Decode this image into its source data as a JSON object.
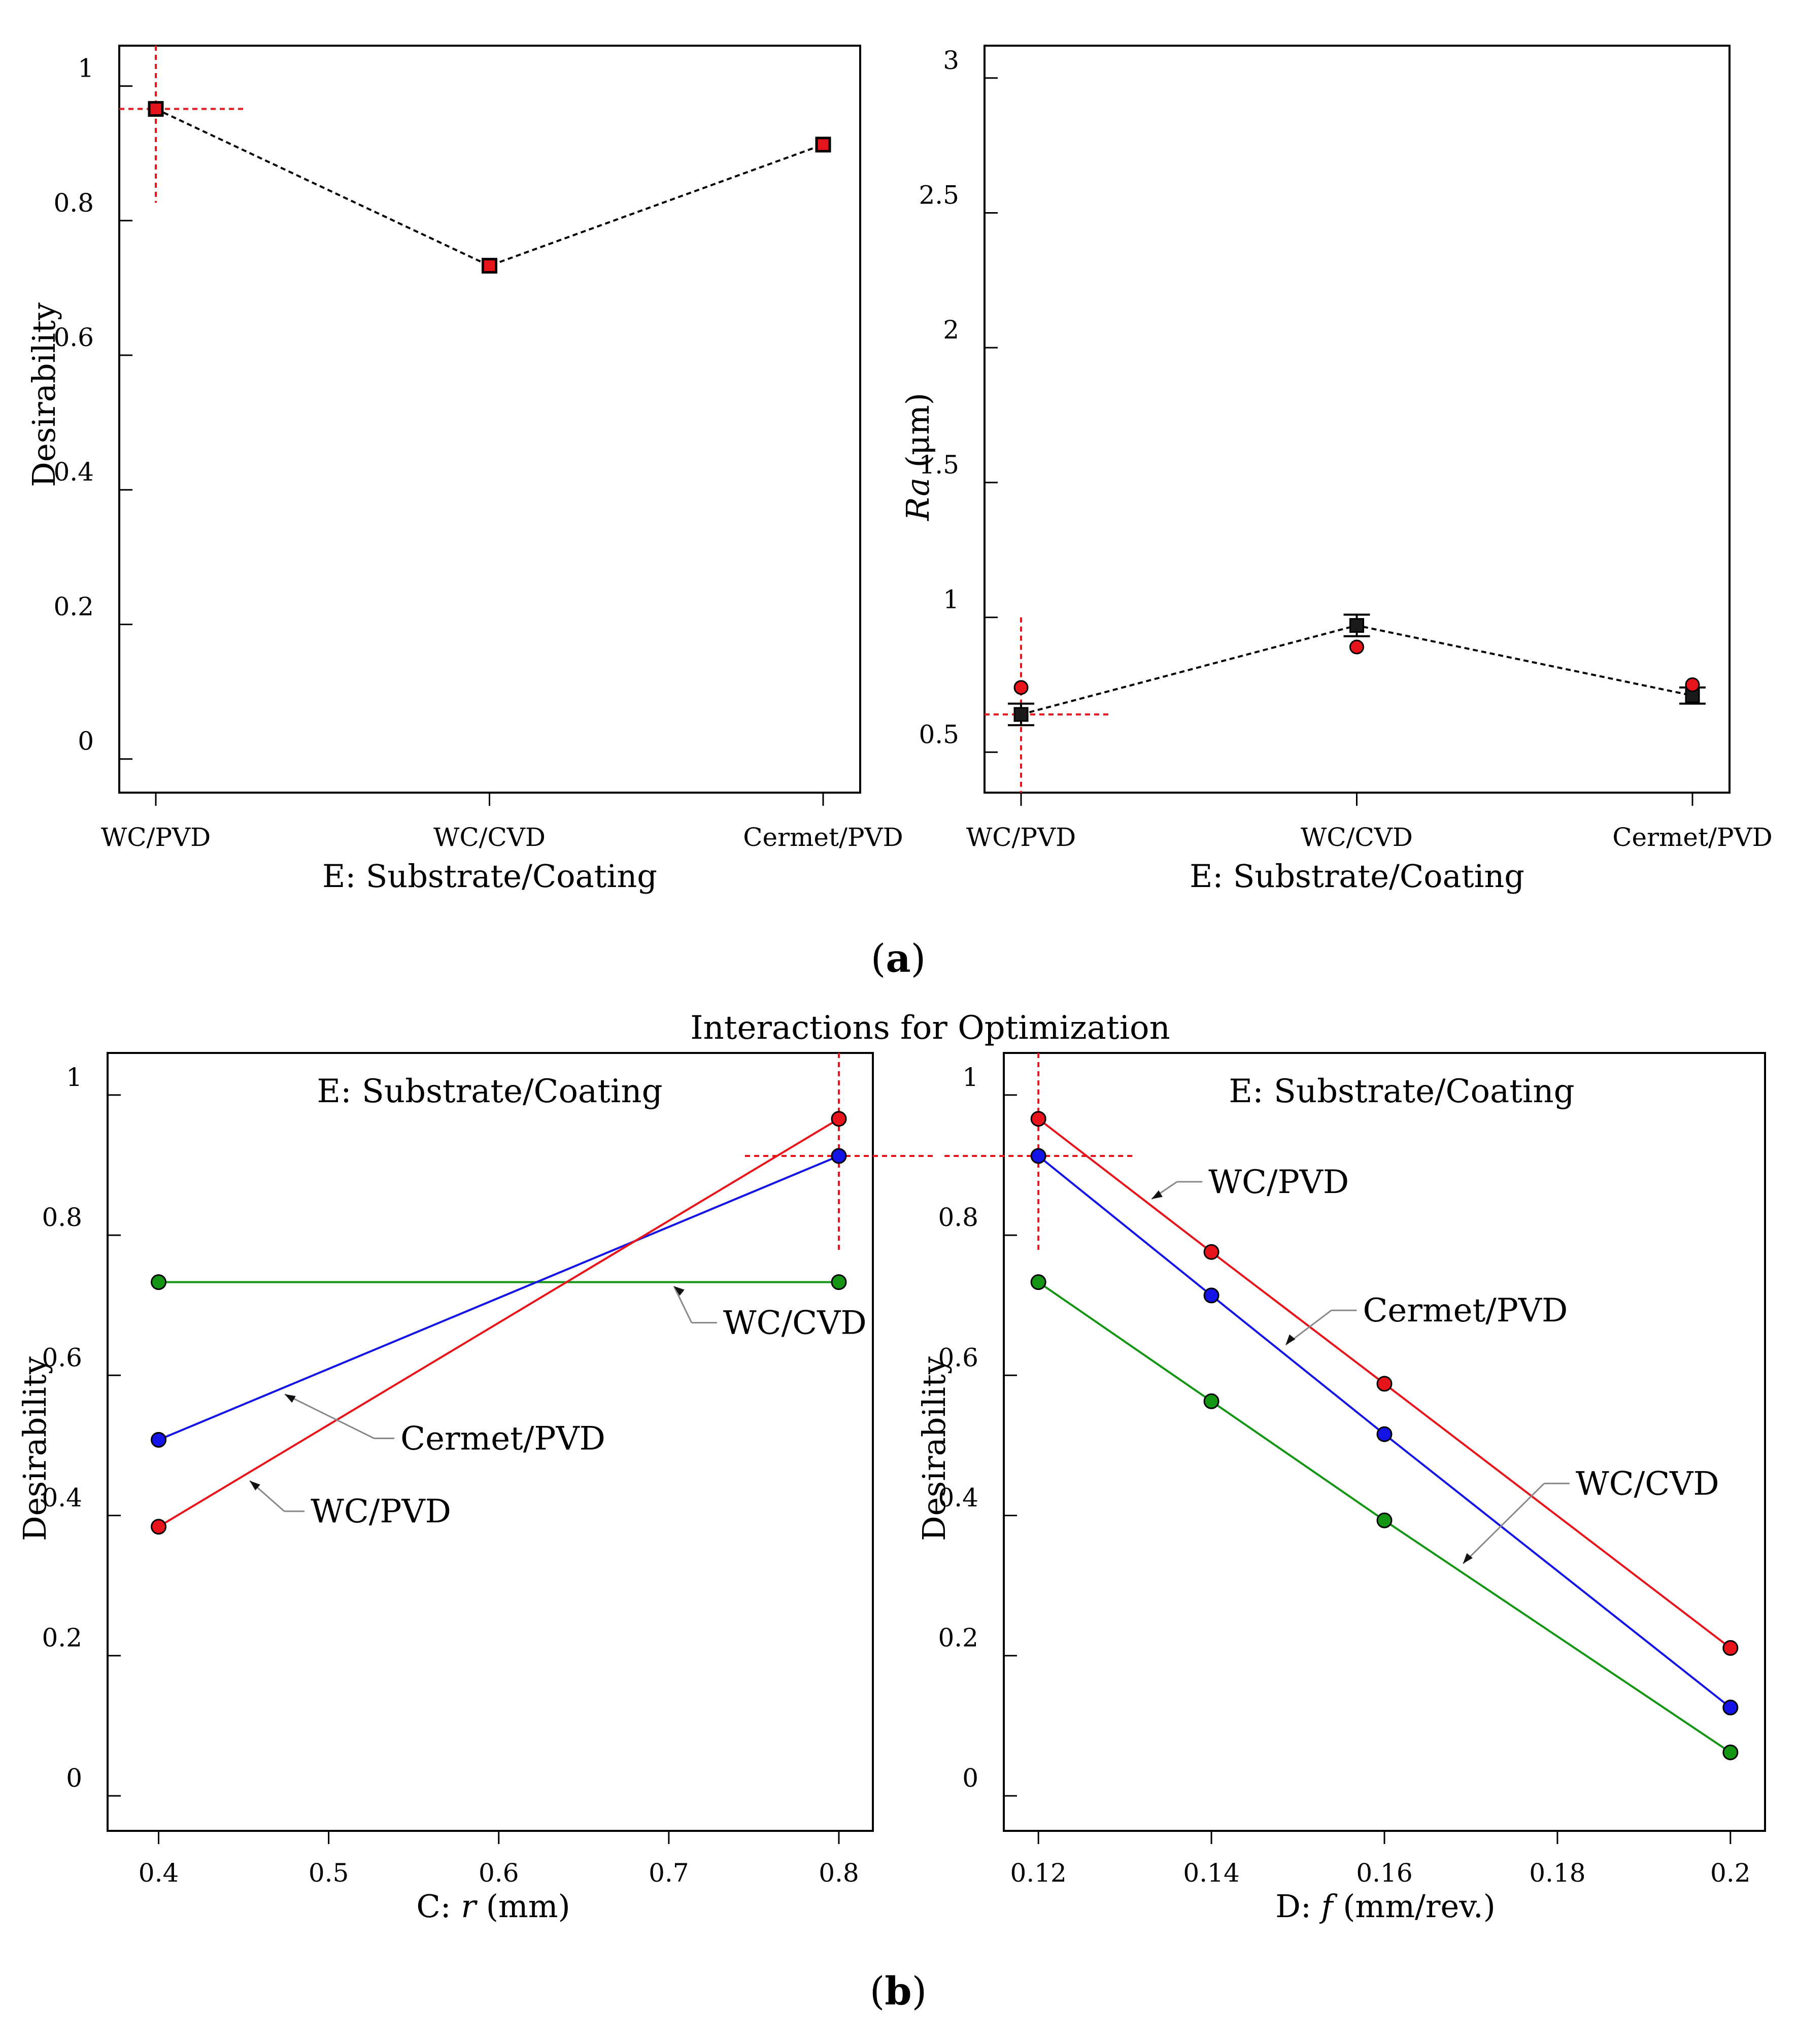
{
  "chart_data": [
    {
      "id": "a1",
      "type": "line",
      "xlabel": "E: Substrate/Coating",
      "ylabel": "Desirability",
      "categories": [
        "WC/PVD",
        "WC/CVD",
        "Cermet/PVD"
      ],
      "values": [
        0.966,
        0.733,
        0.913
      ],
      "ylim": [
        -0.05,
        1.06
      ],
      "yticks": [
        0,
        0.2,
        0.4,
        0.6,
        0.8,
        1
      ],
      "ytick_labels": [
        "0",
        "0.2",
        "0.4",
        "0.6",
        "0.8",
        "1"
      ],
      "optimum": {
        "category": "WC/PVD",
        "value": 0.966
      },
      "colors": {
        "marker": "#e8141b",
        "line": "#000000",
        "crosshair": "#e8141b"
      }
    },
    {
      "id": "a2",
      "type": "line",
      "xlabel": "E: Substrate/Coating",
      "ylabel_italic": "Ra",
      "ylabel_rest": " (μm)",
      "categories": [
        "WC/PVD",
        "WC/CVD",
        "Cermet/PVD"
      ],
      "values": [
        0.64,
        0.97,
        0.71
      ],
      "error": [
        0.04,
        0.04,
        0.03
      ],
      "observed": [
        0.74,
        0.89,
        0.75
      ],
      "ylim": [
        0.35,
        3.12
      ],
      "yticks": [
        0.5,
        1,
        1.5,
        2,
        2.5,
        3
      ],
      "ytick_labels": [
        "0.5",
        "1",
        "1.5",
        "2",
        "2.5",
        "3"
      ],
      "optimum": {
        "category": "WC/PVD",
        "value": 0.64
      },
      "colors": {
        "marker": "#1a1a1a",
        "observed": "#e8141b",
        "crosshair": "#e8141b"
      }
    },
    {
      "id": "b1",
      "type": "line",
      "title": "E: Substrate/Coating",
      "xlabel_pre": "C: ",
      "xlabel_italic": "r",
      "xlabel_post": " (mm)",
      "ylabel": "Desirability",
      "x": [
        0.4,
        0.8
      ],
      "xlim": [
        0.37,
        0.82
      ],
      "xticks": [
        0.4,
        0.5,
        0.6,
        0.7,
        0.8
      ],
      "xtick_labels": [
        "0.4",
        "0.5",
        "0.6",
        "0.7",
        "0.8"
      ],
      "ylim": [
        -0.05,
        1.06
      ],
      "yticks": [
        0,
        0.2,
        0.4,
        0.6,
        0.8,
        1
      ],
      "ytick_labels": [
        "0",
        "0.2",
        "0.4",
        "0.6",
        "0.8",
        "1"
      ],
      "series": [
        {
          "name": "WC/PVD",
          "values": [
            0.384,
            0.966
          ],
          "color": "#e8141b"
        },
        {
          "name": "Cermet/PVD",
          "values": [
            0.508,
            0.913
          ],
          "color": "#1414e6"
        },
        {
          "name": "WC/CVD",
          "values": [
            0.733,
            0.733
          ],
          "color": "#149614"
        }
      ],
      "annotations": [
        {
          "label": "WC/CVD",
          "series": "WC/CVD",
          "at_x": 0.7
        },
        {
          "label": "Cermet/PVD",
          "series": "Cermet/PVD",
          "at_x": 0.47
        },
        {
          "label": "WC/PVD",
          "series": "WC/PVD",
          "at_x": 0.45
        }
      ],
      "optimum": {
        "x": 0.8,
        "y": 0.913
      }
    },
    {
      "id": "b2",
      "type": "line",
      "title": "E: Substrate/Coating",
      "xlabel_pre": "D: ",
      "xlabel_italic": "f",
      "xlabel_post": " (mm/rev.)",
      "ylabel": "Desirability",
      "x": [
        0.12,
        0.14,
        0.16,
        0.2
      ],
      "xlim": [
        0.116,
        0.204
      ],
      "xticks": [
        0.12,
        0.14,
        0.16,
        0.18,
        0.2
      ],
      "xtick_labels": [
        "0.12",
        "0.14",
        "0.16",
        "0.18",
        "0.2"
      ],
      "ylim": [
        -0.05,
        1.06
      ],
      "yticks": [
        0,
        0.2,
        0.4,
        0.6,
        0.8,
        1
      ],
      "ytick_labels": [
        "0",
        "0.2",
        "0.4",
        "0.6",
        "0.8",
        "1"
      ],
      "series": [
        {
          "name": "WC/PVD",
          "values": [
            0.966,
            0.776,
            0.588,
            0.211
          ],
          "color": "#e8141b"
        },
        {
          "name": "Cermet/PVD",
          "values": [
            0.913,
            0.714,
            0.516,
            0.126
          ],
          "color": "#1414e6"
        },
        {
          "name": "WC/CVD",
          "values": [
            0.733,
            0.563,
            0.393,
            0.062
          ],
          "color": "#149614"
        }
      ],
      "annotations": [
        {
          "label": "WC/PVD",
          "series": "WC/PVD",
          "at_x": 0.1325
        },
        {
          "label": "Cermet/PVD",
          "series": "Cermet/PVD",
          "at_x": 0.148
        },
        {
          "label": "WC/CVD",
          "series": "WC/CVD",
          "at_x": 0.1685
        }
      ],
      "optimum": {
        "x": 0.12,
        "y": 0.913
      }
    }
  ],
  "figure": {
    "caption_a": "a",
    "caption_b": "b",
    "suptitle": "Interactions for Optimization"
  }
}
